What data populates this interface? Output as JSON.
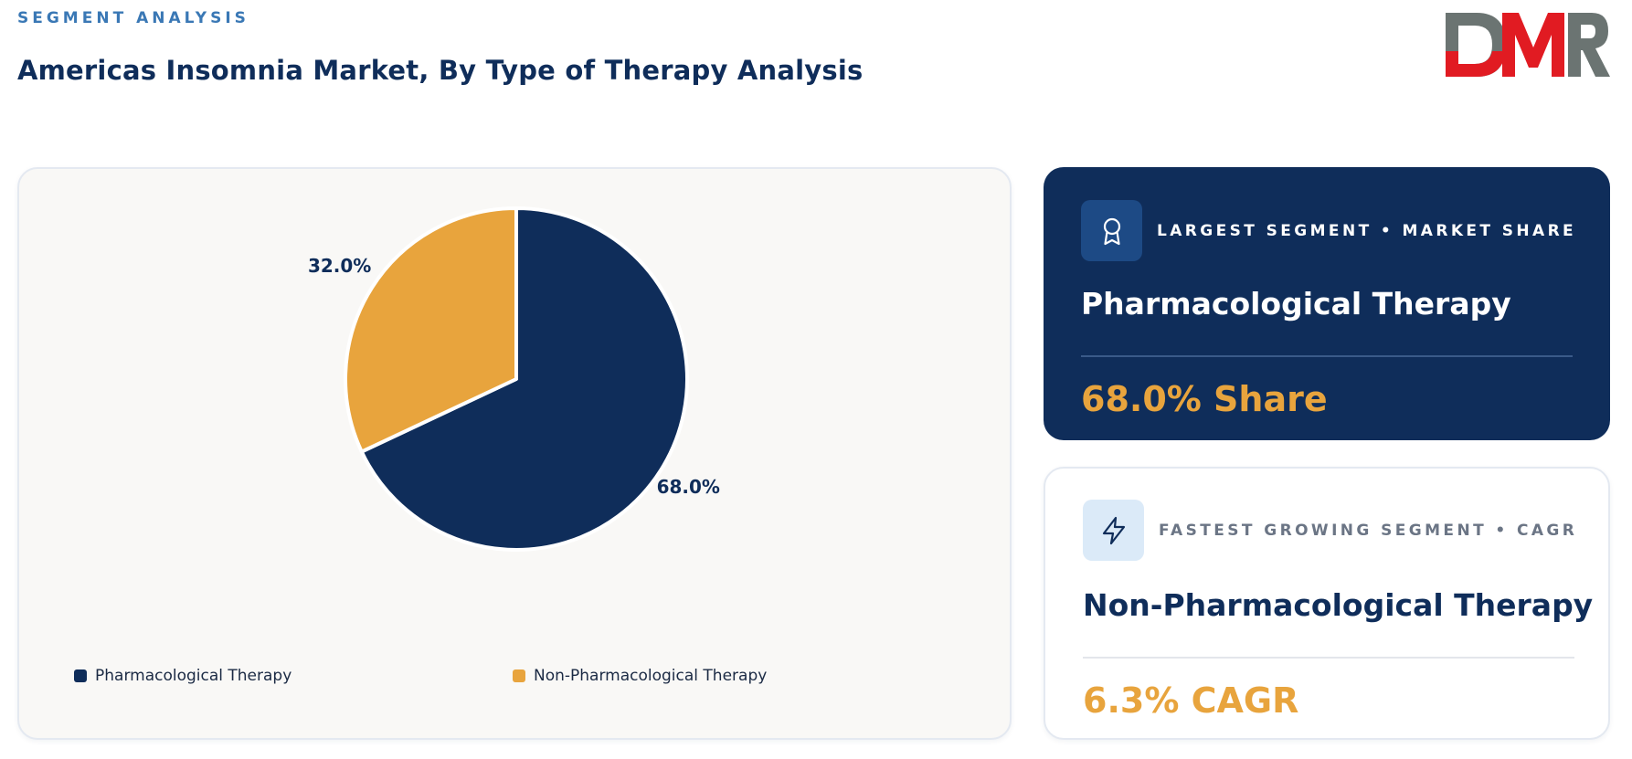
{
  "header": {
    "eyebrow": "SEGMENT ANALYSIS",
    "title": "Americas Insomnia Market, By Type of Therapy Analysis"
  },
  "logo": {
    "text": "DMR",
    "colors": {
      "primary": "#e11b22",
      "secondary": "#6b7472"
    }
  },
  "colors": {
    "navy": "#0f2d5a",
    "amber": "#e8a43d",
    "eyebrow_blue": "#3a78b5"
  },
  "chart_data": {
    "type": "pie",
    "categories": [
      "Pharmacological Therapy",
      "Non-Pharmacological Therapy"
    ],
    "values": [
      68.0,
      32.0
    ],
    "labels": [
      "68.0%",
      "32.0%"
    ],
    "colors": [
      "#0f2d5a",
      "#e8a43d"
    ],
    "legend_position": "bottom"
  },
  "cards": {
    "largest": {
      "icon": "award-ribbon-icon",
      "kicker": "LARGEST SEGMENT • MARKET SHARE",
      "name": "Pharmacological Therapy",
      "value": "68.0% Share"
    },
    "fastest": {
      "icon": "lightning-bolt-icon",
      "kicker": "FASTEST GROWING SEGMENT • CAGR",
      "name": "Non-Pharmacological Therapy",
      "value": "6.3% CAGR"
    }
  }
}
